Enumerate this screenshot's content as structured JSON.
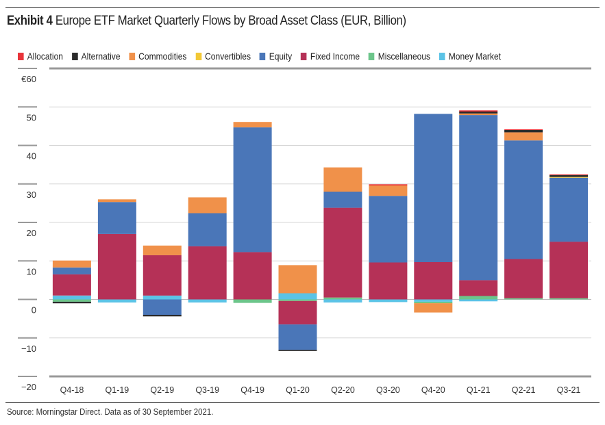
{
  "header": {
    "exhibit_label": "Exhibit 4",
    "title_text": "Europe ETF Market Quarterly Flows by Broad Asset Class (EUR, Billion)"
  },
  "footer": {
    "source": "Source: Morningstar Direct. Data as of 30 September 2021."
  },
  "chart_data": {
    "type": "bar",
    "stacked": true,
    "title": "Exhibit 4 Europe ETF Market Quarterly Flows by Broad Asset Class (EUR, Billion)",
    "xlabel": "",
    "ylabel": "",
    "ylim": [
      -20,
      60
    ],
    "yticks": [
      60,
      50,
      40,
      30,
      20,
      10,
      0,
      -10,
      -20
    ],
    "ytick_labels": [
      "€60",
      "50",
      "40",
      "30",
      "20",
      "10",
      "0",
      "−10",
      "−20"
    ],
    "grid": true,
    "legend_position": "top",
    "categories": [
      "Q4-18",
      "Q1-19",
      "Q2-19",
      "Q3-19",
      "Q4-19",
      "Q1-20",
      "Q2-20",
      "Q3-20",
      "Q4-20",
      "Q1-21",
      "Q2-21",
      "Q3-21"
    ],
    "series": [
      {
        "name": "Money Market",
        "color": "#5bc3e6",
        "values": [
          1.0,
          -0.8,
          1.0,
          -0.8,
          0.0,
          1.6,
          -0.8,
          -0.7,
          -0.6,
          -0.5,
          0.0,
          0.0
        ]
      },
      {
        "name": "Miscellaneous",
        "color": "#6cc58a",
        "values": [
          -0.6,
          0.0,
          0.0,
          0.0,
          -0.9,
          -0.4,
          0.5,
          0.0,
          -0.4,
          0.9,
          0.3,
          0.3
        ]
      },
      {
        "name": "Fixed Income",
        "color": "#b53157",
        "values": [
          5.5,
          17.0,
          10.5,
          13.8,
          12.3,
          -6.1,
          23.3,
          9.6,
          9.7,
          4.1,
          10.2,
          14.7
        ]
      },
      {
        "name": "Equity",
        "color": "#4a76b8",
        "values": [
          1.8,
          8.3,
          -4.0,
          8.6,
          32.4,
          -6.6,
          4.2,
          17.3,
          38.5,
          42.9,
          30.8,
          16.6
        ]
      },
      {
        "name": "Convertibles",
        "color": "#f2c836",
        "values": [
          0.0,
          0.0,
          0.0,
          0.0,
          0.0,
          0.0,
          0.0,
          0.0,
          0.0,
          0.0,
          0.0,
          0.2
        ]
      },
      {
        "name": "Commodities",
        "color": "#f0914a",
        "values": [
          1.8,
          0.7,
          2.5,
          4.1,
          1.4,
          7.3,
          6.3,
          2.7,
          -2.4,
          0.4,
          2.1,
          0.0
        ]
      },
      {
        "name": "Alternative",
        "color": "#2b2b2b",
        "values": [
          -0.4,
          0.0,
          -0.4,
          0.0,
          0.0,
          -0.3,
          0.0,
          0.0,
          0.0,
          0.5,
          0.6,
          0.5
        ]
      },
      {
        "name": "Allocation",
        "color": "#e8343a",
        "values": [
          0.0,
          0.0,
          0.0,
          0.0,
          0.0,
          0.0,
          0.0,
          0.3,
          0.0,
          0.3,
          0.2,
          0.2
        ]
      }
    ],
    "legend": [
      {
        "name": "Allocation",
        "color": "#e8343a"
      },
      {
        "name": "Alternative",
        "color": "#2b2b2b"
      },
      {
        "name": "Commodities",
        "color": "#f0914a"
      },
      {
        "name": "Convertibles",
        "color": "#f2c836"
      },
      {
        "name": "Equity",
        "color": "#4a76b8"
      },
      {
        "name": "Fixed Income",
        "color": "#b53157"
      },
      {
        "name": "Miscellaneous",
        "color": "#6cc58a"
      },
      {
        "name": "Money Market",
        "color": "#5bc3e6"
      }
    ]
  }
}
